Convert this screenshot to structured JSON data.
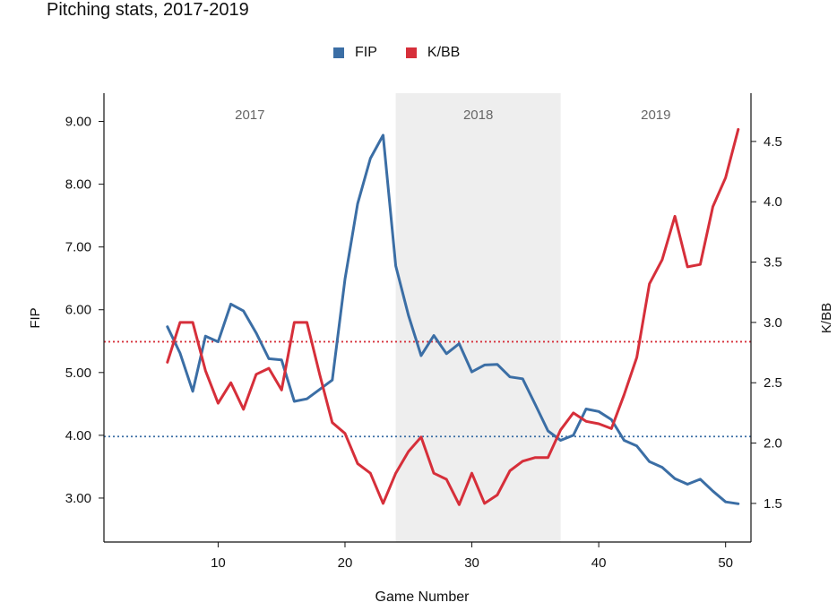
{
  "chart_data": {
    "type": "line",
    "title": "Pitching stats, 2017-2019",
    "xlabel": "Game Number",
    "ylabel_left": "FIP",
    "ylabel_right": "K/BB",
    "xlim": [
      1,
      52
    ],
    "ylim_left": [
      2.3,
      9.45
    ],
    "ylim_right": [
      1.18,
      4.9
    ],
    "x_ticks": [
      10,
      20,
      30,
      40,
      50
    ],
    "y_ticks_left": [
      3.0,
      4.0,
      5.0,
      6.0,
      7.0,
      8.0,
      9.0
    ],
    "y_tick_labels_left": [
      "3.00",
      "4.00",
      "5.00",
      "6.00",
      "7.00",
      "8.00",
      "9.00"
    ],
    "y_ticks_right": [
      1.5,
      2.0,
      2.5,
      3.0,
      3.5,
      4.0,
      4.5
    ],
    "y_tick_labels_right": [
      "1.5",
      "2.0",
      "2.5",
      "3.0",
      "3.5",
      "4.0",
      "4.5"
    ],
    "regions": [
      {
        "label": "2017",
        "x_start": 1,
        "x_end": 24,
        "shaded": false
      },
      {
        "label": "2018",
        "x_start": 24,
        "x_end": 37,
        "shaded": true
      },
      {
        "label": "2019",
        "x_start": 37,
        "x_end": 52,
        "shaded": false
      }
    ],
    "reference_lines": [
      {
        "axis": "right",
        "value": 2.84,
        "color": "#d62f3a",
        "style": "dotted"
      },
      {
        "axis": "left",
        "value": 3.98,
        "color": "#3b6ea5",
        "style": "dotted"
      }
    ],
    "x": [
      6,
      7,
      8,
      9,
      10,
      11,
      12,
      13,
      14,
      15,
      16,
      17,
      18,
      19,
      20,
      21,
      22,
      23,
      24,
      25,
      26,
      27,
      28,
      29,
      30,
      31,
      32,
      33,
      34,
      35,
      36,
      37,
      38,
      39,
      40,
      41,
      42,
      43,
      44,
      45,
      46,
      47,
      48,
      49,
      50,
      51
    ],
    "series": [
      {
        "name": "FIP",
        "axis": "left",
        "color": "#3b6ea5",
        "values": [
          5.73,
          5.31,
          4.7,
          5.58,
          5.49,
          6.09,
          5.98,
          5.63,
          5.22,
          5.2,
          4.54,
          4.58,
          4.73,
          4.88,
          6.49,
          7.69,
          8.41,
          8.78,
          6.7,
          5.91,
          5.27,
          5.59,
          5.3,
          5.46,
          5.01,
          5.12,
          5.13,
          4.93,
          4.9,
          4.49,
          4.07,
          3.92,
          4.0,
          4.42,
          4.38,
          4.25,
          3.92,
          3.83,
          3.58,
          3.49,
          3.31,
          3.22,
          3.3,
          3.11,
          2.94,
          2.91
        ]
      },
      {
        "name": "K/BB",
        "axis": "right",
        "color": "#d62f3a",
        "values": [
          2.67,
          3.0,
          3.0,
          2.6,
          2.33,
          2.5,
          2.28,
          2.57,
          2.62,
          2.44,
          3.0,
          3.0,
          2.57,
          2.17,
          2.08,
          1.83,
          1.75,
          1.5,
          1.75,
          1.93,
          2.05,
          1.75,
          1.7,
          1.49,
          1.75,
          1.5,
          1.57,
          1.77,
          1.85,
          1.88,
          1.88,
          2.11,
          2.25,
          2.18,
          2.16,
          2.12,
          2.4,
          2.71,
          3.32,
          3.52,
          3.88,
          3.46,
          3.48,
          3.96,
          4.2,
          4.6
        ]
      }
    ]
  }
}
